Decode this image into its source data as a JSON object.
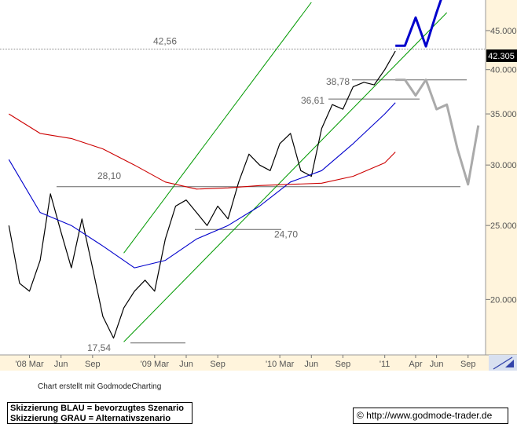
{
  "chart_data": {
    "type": "line",
    "title": "",
    "xlabel": "",
    "ylabel": "",
    "y_scale": "log",
    "ylim": [
      17.0,
      49.0
    ],
    "x_ticks": [
      {
        "label": "'08 Mar",
        "date": "2008-03"
      },
      {
        "label": "Jun",
        "date": "2008-06"
      },
      {
        "label": "Sep",
        "date": "2008-09"
      },
      {
        "label": "'09 Mar",
        "date": "2009-03"
      },
      {
        "label": "Jun",
        "date": "2009-06"
      },
      {
        "label": "Sep",
        "date": "2009-09"
      },
      {
        "label": "'10 Mar",
        "date": "2010-03"
      },
      {
        "label": "Jun",
        "date": "2010-06"
      },
      {
        "label": "Sep",
        "date": "2010-09"
      },
      {
        "label": "'11",
        "date": "2011-01"
      },
      {
        "label": "Apr",
        "date": "2011-04"
      },
      {
        "label": "Jun",
        "date": "2011-06"
      },
      {
        "label": "Sep",
        "date": "2011-09"
      }
    ],
    "y_ticks": [
      "20.000",
      "25.000",
      "30.000",
      "35.000",
      "40.000",
      "45.000"
    ],
    "y_tick_values": [
      20,
      25,
      30,
      35,
      40,
      45
    ],
    "last_price": "42.305",
    "levels": [
      {
        "label": "42,56",
        "value": 42.56
      },
      {
        "label": "38,78",
        "value": 38.78
      },
      {
        "label": "36,61",
        "value": 36.61
      },
      {
        "label": "28,10",
        "value": 28.1
      },
      {
        "label": "24,70",
        "value": 24.7
      },
      {
        "label": "17,54",
        "value": 17.54
      }
    ],
    "series": [
      {
        "type": "price",
        "color": "#000000",
        "x": [
          "2008-01",
          "2008-02",
          "2008-03",
          "2008-04",
          "2008-05",
          "2008-06",
          "2008-07",
          "2008-08",
          "2008-09",
          "2008-10",
          "2008-11",
          "2008-12",
          "2009-01",
          "2009-02",
          "2009-03",
          "2009-04",
          "2009-05",
          "2009-06",
          "2009-07",
          "2009-08",
          "2009-09",
          "2009-10",
          "2009-11",
          "2009-12",
          "2010-01",
          "2010-02",
          "2010-03",
          "2010-04",
          "2010-05",
          "2010-06",
          "2010-07",
          "2010-08",
          "2010-09",
          "2010-10",
          "2010-11",
          "2010-12",
          "2011-01",
          "2011-02"
        ],
        "y": [
          25.0,
          21.0,
          20.5,
          22.5,
          27.5,
          24.5,
          22.0,
          25.5,
          22.0,
          19.0,
          17.8,
          19.5,
          20.5,
          21.2,
          20.5,
          24.0,
          26.5,
          27.0,
          26.0,
          25.0,
          26.5,
          25.5,
          28.5,
          31.0,
          30.0,
          29.5,
          32.0,
          33.0,
          29.5,
          29.0,
          33.5,
          36.0,
          35.5,
          38.0,
          38.5,
          38.2,
          40.0,
          42.3
        ]
      },
      {
        "type": "moving-average",
        "color": "#0000cc",
        "x": [
          "2008-01",
          "2008-04",
          "2008-07",
          "2008-10",
          "2009-01",
          "2009-04",
          "2009-07",
          "2009-10",
          "2010-01",
          "2010-04",
          "2010-07",
          "2010-10",
          "2011-01",
          "2011-02"
        ],
        "y": [
          30.5,
          26.0,
          25.0,
          23.5,
          22.0,
          22.5,
          24.0,
          25.0,
          26.5,
          28.5,
          29.5,
          32.0,
          35.0,
          36.2
        ]
      },
      {
        "type": "moving-average",
        "color": "#cc0000",
        "x": [
          "2008-01",
          "2008-04",
          "2008-07",
          "2008-10",
          "2009-01",
          "2009-04",
          "2009-07",
          "2009-10",
          "2010-01",
          "2010-04",
          "2010-07",
          "2010-10",
          "2011-01",
          "2011-02"
        ],
        "y": [
          35.0,
          33.0,
          32.5,
          31.5,
          30.0,
          28.5,
          27.9,
          28.0,
          28.2,
          28.3,
          28.4,
          29.0,
          30.2,
          31.2
        ]
      },
      {
        "type": "scenario-preferred",
        "color": "#0000cc",
        "x": [
          "2011-02",
          "2011-03",
          "2011-04",
          "2011-05",
          "2011-06",
          "2011-07"
        ],
        "y": [
          43.0,
          43.0,
          46.8,
          42.9,
          47.5,
          52.0
        ]
      },
      {
        "type": "scenario-alternative",
        "color": "#aaaaaa",
        "x": [
          "2011-02",
          "2011-03",
          "2011-04",
          "2011-05",
          "2011-06",
          "2011-07",
          "2011-08",
          "2011-09",
          "2011-10"
        ],
        "y": [
          38.8,
          38.8,
          37.0,
          38.8,
          35.5,
          36.0,
          31.5,
          28.3,
          33.8
        ]
      }
    ],
    "channel_lines": [
      {
        "color": "#009900",
        "from": {
          "date": "2008-12",
          "value": 23.0
        },
        "to": {
          "date": "2010-06",
          "value": 49.0
        }
      },
      {
        "color": "#009900",
        "from": {
          "date": "2008-12",
          "value": 17.6
        },
        "to": {
          "date": "2011-07",
          "value": 47.5
        }
      }
    ]
  },
  "credit": "Chart erstellt mit GodmodeCharting",
  "legend": {
    "line1": "Skizzierung BLAU = bevorzugtes Szenario",
    "line2": "Skizzierung GRAU = Alternativszenario"
  },
  "url": "© http://www.godmode-trader.de",
  "colors": {
    "price": "#000000",
    "ma_fast": "#0000cc",
    "ma_slow": "#cc0000",
    "channel": "#009900",
    "scenario_preferred": "#0000cc",
    "scenario_alternative": "#aaaaaa",
    "last_price_bg": "#000000"
  }
}
